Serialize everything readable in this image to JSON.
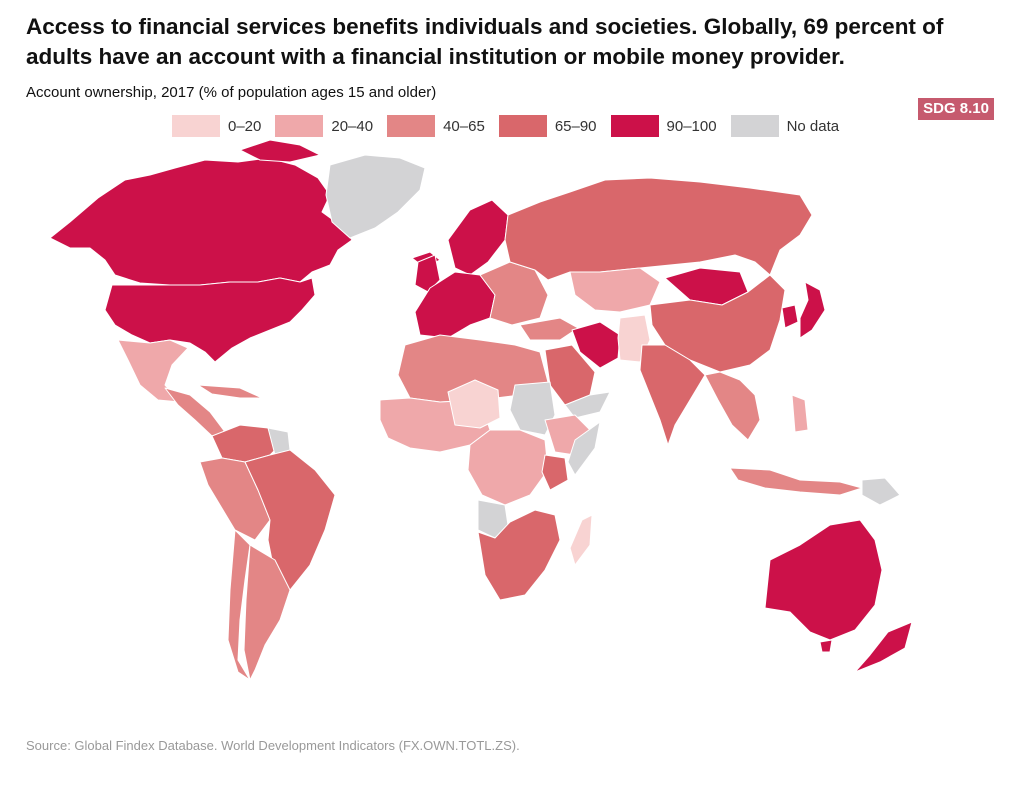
{
  "header": {
    "title": "Access to financial services benefits individuals and societies. Globally, 69 percent of adults have an account with a financial institution or mobile money provider.",
    "subtitle": "Account ownership, 2017 (% of population ages 15 and older)",
    "badge": "SDG 8.10"
  },
  "legend": [
    {
      "label": "0–20",
      "color": "#f8d3d2"
    },
    {
      "label": "20–40",
      "color": "#efa8aa"
    },
    {
      "label": "40–65",
      "color": "#e38686"
    },
    {
      "label": "65–90",
      "color": "#d9676b"
    },
    {
      "label": "90–100",
      "color": "#cc1149"
    },
    {
      "label": "No data",
      "color": "#d3d3d5"
    }
  ],
  "map": {
    "regions": [
      {
        "name": "Canada",
        "class": "90–100"
      },
      {
        "name": "United States",
        "class": "90–100"
      },
      {
        "name": "Greenland",
        "class": "No data"
      },
      {
        "name": "Mexico",
        "class": "20–40"
      },
      {
        "name": "Brazil",
        "class": "65–90"
      },
      {
        "name": "Argentina",
        "class": "40–65"
      },
      {
        "name": "Western Europe",
        "class": "90–100"
      },
      {
        "name": "Russia",
        "class": "65–90"
      },
      {
        "name": "Mongolia",
        "class": "90–100"
      },
      {
        "name": "China",
        "class": "65–90"
      },
      {
        "name": "Japan",
        "class": "90–100"
      },
      {
        "name": "India",
        "class": "65–90"
      },
      {
        "name": "Iran",
        "class": "90–100"
      },
      {
        "name": "Sudan",
        "class": "No data"
      },
      {
        "name": "South Africa",
        "class": "65–90"
      },
      {
        "name": "Kenya",
        "class": "65–90"
      },
      {
        "name": "Madagascar",
        "class": "0–20"
      },
      {
        "name": "Australia",
        "class": "90–100"
      },
      {
        "name": "New Zealand",
        "class": "90–100"
      },
      {
        "name": "Indonesia",
        "class": "40–65"
      }
    ]
  },
  "footer": {
    "source": "Source: Global Findex Database. World Development Indicators (FX.OWN.TOTL.ZS)."
  }
}
